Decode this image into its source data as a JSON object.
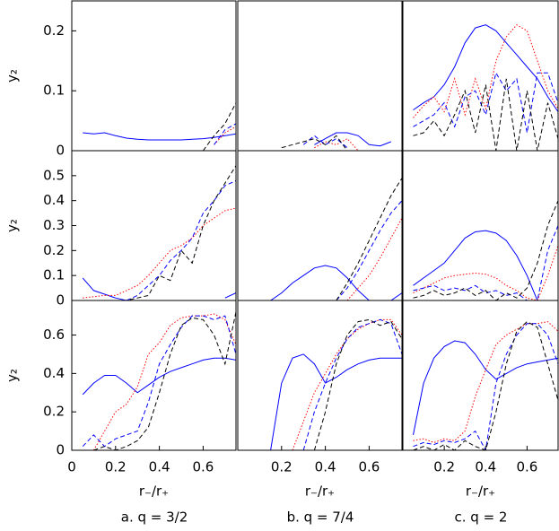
{
  "captions": [
    "a. q = 3/2",
    "b. q = 7/4",
    "c. q = 2"
  ],
  "chart_data": [
    {
      "type": "line",
      "ylabel": "y₂",
      "xlim": [
        0,
        0.75
      ],
      "ylim": [
        0,
        0.25
      ],
      "yticks": [
        0,
        0.1,
        0.2
      ],
      "x": [
        0.05,
        0.1,
        0.15,
        0.2,
        0.25,
        0.3,
        0.35,
        0.4,
        0.45,
        0.5,
        0.55,
        0.6,
        0.65,
        0.7,
        0.75
      ],
      "series": [
        {
          "color": "#0000ff",
          "style": "solid",
          "values": [
            0.03,
            0.028,
            0.03,
            0.025,
            0.021,
            0.019,
            0.018,
            0.018,
            0.018,
            0.018,
            0.019,
            0.02,
            0.022,
            0.025,
            0.028
          ]
        },
        {
          "color": "#ff0000",
          "style": "dotted",
          "values": [
            null,
            null,
            null,
            null,
            null,
            null,
            null,
            null,
            null,
            null,
            null,
            null,
            0.01,
            0.03,
            0.04
          ]
        },
        {
          "color": "#0000ff",
          "style": "dashed",
          "values": [
            null,
            null,
            null,
            null,
            null,
            null,
            null,
            null,
            null,
            null,
            null,
            null,
            0.01,
            0.035,
            0.045
          ]
        },
        {
          "color": "#000000",
          "style": "dashed",
          "values": [
            null,
            null,
            null,
            null,
            null,
            null,
            null,
            null,
            null,
            null,
            null,
            0,
            0.025,
            0.045,
            0.08
          ]
        }
      ]
    },
    {
      "type": "line",
      "xlim": [
        0,
        0.75
      ],
      "ylim": [
        0,
        0.25
      ],
      "x": [
        0.05,
        0.1,
        0.15,
        0.2,
        0.25,
        0.3,
        0.35,
        0.4,
        0.45,
        0.5,
        0.55,
        0.6,
        0.65,
        0.7,
        0.75
      ],
      "series": [
        {
          "color": "#0000ff",
          "style": "solid",
          "values": [
            null,
            null,
            null,
            null,
            null,
            null,
            0.01,
            0.02,
            0.03,
            0.03,
            0.025,
            0.01,
            0.008,
            0.015,
            null
          ]
        },
        {
          "color": "#ff0000",
          "style": "dotted",
          "values": [
            null,
            null,
            null,
            null,
            null,
            null,
            0.005,
            0.015,
            0.01,
            0.02,
            0,
            null,
            null,
            null,
            null
          ]
        },
        {
          "color": "#0000ff",
          "style": "dashed",
          "values": [
            null,
            null,
            null,
            null,
            null,
            0.01,
            0.025,
            0.01,
            0.02,
            0.005,
            null,
            null,
            null,
            null,
            null
          ]
        },
        {
          "color": "#000000",
          "style": "dashed",
          "values": [
            null,
            null,
            null,
            0.005,
            0.01,
            0.015,
            0.02,
            0.01,
            0.025,
            0,
            null,
            null,
            null,
            null,
            null
          ]
        }
      ]
    },
    {
      "type": "line",
      "xlim": [
        0,
        0.75
      ],
      "ylim": [
        0,
        0.25
      ],
      "x": [
        0.05,
        0.1,
        0.15,
        0.2,
        0.25,
        0.3,
        0.35,
        0.4,
        0.45,
        0.5,
        0.55,
        0.6,
        0.65,
        0.7,
        0.75
      ],
      "series": [
        {
          "color": "#0000ff",
          "style": "solid",
          "values": [
            0.068,
            0.08,
            0.09,
            0.11,
            0.14,
            0.18,
            0.205,
            0.21,
            0.2,
            0.18,
            0.16,
            0.14,
            0.12,
            0.09,
            0.065
          ]
        },
        {
          "color": "#ff0000",
          "style": "dotted",
          "values": [
            0.055,
            0.075,
            0.09,
            0.065,
            0.12,
            0.06,
            0.12,
            0.07,
            0.15,
            0.19,
            0.21,
            0.2,
            0.15,
            0.1,
            0.07
          ]
        },
        {
          "color": "#0000ff",
          "style": "dashed",
          "values": [
            0.04,
            0.05,
            0.06,
            0.08,
            0.04,
            0.09,
            0.1,
            0.06,
            0.13,
            0.1,
            0.12,
            0.03,
            0.13,
            0.13,
            0.08
          ]
        },
        {
          "color": "#000000",
          "style": "dashed",
          "values": [
            0.025,
            0.03,
            0.05,
            0.025,
            0.06,
            0.1,
            0.03,
            0.11,
            0,
            0.12,
            0,
            0.1,
            0,
            0.08,
            0.02
          ]
        }
      ]
    },
    {
      "type": "line",
      "ylabel": "y₂",
      "xlim": [
        0,
        0.75
      ],
      "ylim": [
        0,
        0.6
      ],
      "yticks": [
        0,
        0.1,
        0.2,
        0.3,
        0.4,
        0.5
      ],
      "x": [
        0.05,
        0.1,
        0.15,
        0.2,
        0.25,
        0.3,
        0.35,
        0.4,
        0.45,
        0.5,
        0.55,
        0.6,
        0.65,
        0.7,
        0.75
      ],
      "series": [
        {
          "color": "#0000ff",
          "style": "solid",
          "values": [
            0.09,
            0.04,
            0.025,
            0.01,
            0,
            null,
            null,
            null,
            null,
            null,
            null,
            null,
            null,
            0.01,
            0.03
          ]
        },
        {
          "color": "#ff0000",
          "style": "dotted",
          "values": [
            0.01,
            0.015,
            0.02,
            0.02,
            0.04,
            0.06,
            0.1,
            0.15,
            0.2,
            0.22,
            0.25,
            0.3,
            0.33,
            0.36,
            0.37
          ]
        },
        {
          "color": "#0000ff",
          "style": "dashed",
          "values": [
            null,
            null,
            null,
            null,
            0,
            0.02,
            0.06,
            0.1,
            0.16,
            0.2,
            0.25,
            0.35,
            0.4,
            0.46,
            0.48
          ]
        },
        {
          "color": "#000000",
          "style": "dashed",
          "values": [
            null,
            null,
            null,
            0,
            0,
            0.01,
            0.02,
            0.1,
            0.08,
            0.2,
            0.15,
            0.3,
            0.4,
            0.47,
            0.54
          ]
        }
      ]
    },
    {
      "type": "line",
      "xlim": [
        0,
        0.75
      ],
      "ylim": [
        0,
        0.6
      ],
      "x": [
        0.05,
        0.1,
        0.15,
        0.2,
        0.25,
        0.3,
        0.35,
        0.4,
        0.45,
        0.5,
        0.55,
        0.6,
        0.65,
        0.7,
        0.75
      ],
      "series": [
        {
          "color": "#0000ff",
          "style": "solid",
          "values": [
            null,
            null,
            0,
            0.03,
            0.07,
            0.1,
            0.13,
            0.14,
            0.13,
            0.09,
            0.04,
            0,
            null,
            0,
            0.03
          ]
        },
        {
          "color": "#ff0000",
          "style": "dotted",
          "values": [
            null,
            null,
            null,
            null,
            null,
            null,
            null,
            null,
            null,
            0,
            0.05,
            0.1,
            0.17,
            0.25,
            0.33
          ]
        },
        {
          "color": "#0000ff",
          "style": "dashed",
          "values": [
            null,
            null,
            null,
            null,
            null,
            null,
            null,
            null,
            0,
            0.05,
            0.12,
            0.2,
            0.28,
            0.35,
            0.4
          ]
        },
        {
          "color": "#000000",
          "style": "dashed",
          "values": [
            null,
            null,
            null,
            null,
            null,
            null,
            null,
            null,
            0,
            0.07,
            0.15,
            0.24,
            0.33,
            0.42,
            0.49
          ]
        }
      ]
    },
    {
      "type": "line",
      "xlim": [
        0,
        0.75
      ],
      "ylim": [
        0,
        0.6
      ],
      "x": [
        0.05,
        0.1,
        0.15,
        0.2,
        0.25,
        0.3,
        0.35,
        0.4,
        0.45,
        0.5,
        0.55,
        0.6,
        0.65,
        0.7,
        0.75
      ],
      "series": [
        {
          "color": "#0000ff",
          "style": "solid",
          "values": [
            0.06,
            0.09,
            0.12,
            0.15,
            0.2,
            0.25,
            0.275,
            0.28,
            0.27,
            0.24,
            0.18,
            0.1,
            0,
            null,
            null
          ]
        },
        {
          "color": "#ff0000",
          "style": "dotted",
          "values": [
            0.03,
            0.05,
            0.07,
            0.09,
            0.1,
            0.105,
            0.11,
            0.105,
            0.09,
            0.06,
            0.04,
            0.01,
            0,
            0.1,
            0.22
          ]
        },
        {
          "color": "#0000ff",
          "style": "dashed",
          "values": [
            0.04,
            0.05,
            0.06,
            0.04,
            0.05,
            0.04,
            0.06,
            0.03,
            0.04,
            0.02,
            0.03,
            0,
            0,
            0.2,
            0.3
          ]
        },
        {
          "color": "#000000",
          "style": "dashed",
          "values": [
            0.01,
            0.02,
            0.04,
            0.02,
            0.03,
            0.05,
            0.02,
            0.04,
            0,
            0.03,
            0.01,
            0.05,
            0.15,
            0.3,
            0.4
          ]
        }
      ]
    },
    {
      "type": "line",
      "ylabel": "y₂",
      "xlabel": "r₋/r₊",
      "xlim": [
        0,
        0.75
      ],
      "ylim": [
        0,
        0.78
      ],
      "yticks": [
        0,
        0.2,
        0.4,
        0.6
      ],
      "xticks": [
        0,
        0.2,
        0.4,
        0.6
      ],
      "x": [
        0.05,
        0.1,
        0.15,
        0.2,
        0.25,
        0.3,
        0.35,
        0.4,
        0.45,
        0.5,
        0.55,
        0.6,
        0.65,
        0.7,
        0.75
      ],
      "series": [
        {
          "color": "#0000ff",
          "style": "solid",
          "values": [
            0.29,
            0.35,
            0.39,
            0.39,
            0.35,
            0.3,
            0.34,
            0.38,
            0.41,
            0.43,
            0.45,
            0.47,
            0.48,
            0.48,
            0.47
          ]
        },
        {
          "color": "#ff0000",
          "style": "dotted",
          "values": [
            null,
            0,
            0.1,
            0.2,
            0.24,
            0.33,
            0.5,
            0.56,
            0.65,
            0.69,
            0.7,
            0.7,
            0.71,
            0.68,
            0.55
          ]
        },
        {
          "color": "#0000ff",
          "style": "dashed",
          "values": [
            0.02,
            0.08,
            0.02,
            0.06,
            0.08,
            0.1,
            0.25,
            0.45,
            0.55,
            0.64,
            0.7,
            0.7,
            0.68,
            0.7,
            0.5
          ]
        },
        {
          "color": "#000000",
          "style": "dashed",
          "values": [
            null,
            0,
            0.02,
            0,
            0.02,
            0.05,
            0.12,
            0.3,
            0.5,
            0.65,
            0.69,
            0.68,
            0.6,
            0.45,
            0.72
          ]
        }
      ]
    },
    {
      "type": "line",
      "xlabel": "r₋/r₊",
      "xlim": [
        0,
        0.75
      ],
      "ylim": [
        0,
        0.78
      ],
      "xticks": [
        0.2,
        0.4,
        0.6
      ],
      "x": [
        0.05,
        0.1,
        0.15,
        0.2,
        0.25,
        0.3,
        0.35,
        0.4,
        0.45,
        0.5,
        0.55,
        0.6,
        0.65,
        0.7,
        0.75
      ],
      "series": [
        {
          "color": "#0000ff",
          "style": "solid",
          "values": [
            null,
            null,
            0,
            0.35,
            0.48,
            0.5,
            0.45,
            0.35,
            0.38,
            0.42,
            0.45,
            0.47,
            0.48,
            0.48,
            0.48
          ]
        },
        {
          "color": "#ff0000",
          "style": "dotted",
          "values": [
            null,
            null,
            null,
            null,
            0,
            0.15,
            0.3,
            0.4,
            0.5,
            0.58,
            0.63,
            0.66,
            0.68,
            0.68,
            0.6
          ]
        },
        {
          "color": "#0000ff",
          "style": "dashed",
          "values": [
            null,
            null,
            null,
            null,
            null,
            0,
            0.2,
            0.35,
            0.48,
            0.58,
            0.64,
            0.66,
            0.68,
            0.66,
            0.5
          ]
        },
        {
          "color": "#000000",
          "style": "dashed",
          "values": [
            null,
            null,
            null,
            null,
            null,
            null,
            0,
            0.2,
            0.45,
            0.6,
            0.67,
            0.68,
            0.65,
            0.67,
            0.58
          ]
        }
      ]
    },
    {
      "type": "line",
      "xlabel": "r₋/r₊",
      "xlim": [
        0,
        0.75
      ],
      "ylim": [
        0,
        0.78
      ],
      "xticks": [
        0.2,
        0.4,
        0.6
      ],
      "x": [
        0.05,
        0.1,
        0.15,
        0.2,
        0.25,
        0.3,
        0.35,
        0.4,
        0.45,
        0.5,
        0.55,
        0.6,
        0.65,
        0.7,
        0.75
      ],
      "series": [
        {
          "color": "#0000ff",
          "style": "solid",
          "values": [
            0.08,
            0.35,
            0.48,
            0.54,
            0.57,
            0.56,
            0.5,
            0.42,
            0.37,
            0.4,
            0.43,
            0.45,
            0.46,
            0.47,
            0.48
          ]
        },
        {
          "color": "#ff0000",
          "style": "dotted",
          "values": [
            0.05,
            0.06,
            0.04,
            0.06,
            0.05,
            0.1,
            0.28,
            0.42,
            0.55,
            0.6,
            0.63,
            0.66,
            0.66,
            0.67,
            0.62
          ]
        },
        {
          "color": "#0000ff",
          "style": "dashed",
          "values": [
            0.02,
            0.04,
            0.03,
            0.05,
            0.04,
            0.06,
            0.1,
            0,
            0.35,
            0.5,
            0.6,
            0.66,
            0.66,
            0.6,
            0.45
          ]
        },
        {
          "color": "#000000",
          "style": "dashed",
          "values": [
            0,
            0.02,
            0,
            0.03,
            0,
            0.05,
            0.02,
            0,
            0.2,
            0.45,
            0.62,
            0.67,
            0.64,
            0.45,
            0.26
          ]
        }
      ]
    }
  ]
}
